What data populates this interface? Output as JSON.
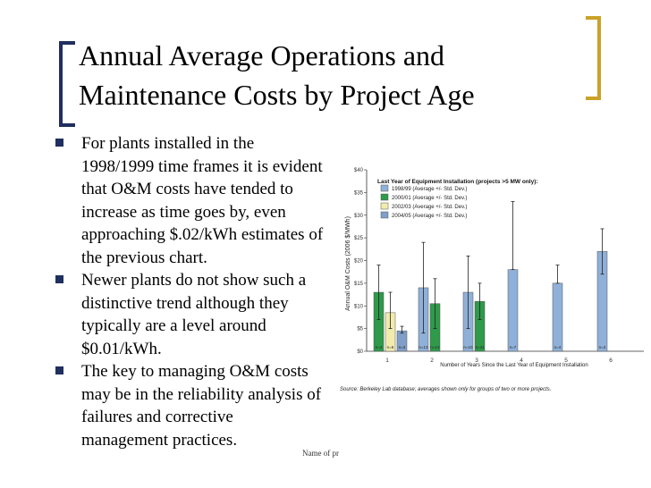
{
  "slide": {
    "title": "Annual Average Operations and Maintenance Costs by Project Age",
    "bullets": [
      "For plants installed in the 1998/1999 time frames it is evident that O&M costs have tended to increase as time goes by, even approaching $.02/kWh estimates of the previous chart.",
      "Newer plants do not show such a distinctive trend although they typically are a level around $0.01/kWh.",
      "The key to managing O&M costs may be in the reliability analysis of failures and corrective management practices."
    ],
    "footer": "Name of pr"
  },
  "colors": {
    "bracket_left": "#1f2f5f",
    "bracket_right": "#c9a227",
    "bullet": "#1f2f5f"
  },
  "chart_data": {
    "type": "bar",
    "ylabel": "Annual O&M Costs (2006 $/MWh)",
    "xlabel": "Number of Years Since the Last Year of Equipment Installation",
    "legend_title": "Last Year of Equipment Installation (projects >5 MW only):",
    "source": "Source: Berkeley Lab database; averages shown only for groups of two or more projects.",
    "ylim": [
      0,
      40
    ],
    "yticks": [
      "$0",
      "$5",
      "$10",
      "$15",
      "$20",
      "$25",
      "$30",
      "$35",
      "$40"
    ],
    "categories": [
      "1",
      "2",
      "3",
      "4",
      "5",
      "6"
    ],
    "series": [
      {
        "name": "1998/99 (Average +/- Std. Dev.)",
        "color": "#8fb0d8",
        "values": [
          null,
          14,
          13,
          18,
          15,
          22
        ],
        "err_low": [
          null,
          4,
          5,
          18,
          15,
          17
        ],
        "err_high": [
          null,
          24,
          21,
          33,
          19,
          27
        ],
        "n": [
          null,
          "n=13",
          "n=10",
          "n=7",
          "n=4",
          "n=2"
        ]
      },
      {
        "name": "2000/01 (Average +/- Std. Dev.)",
        "color": "#2e9a4a",
        "values": [
          13,
          10.5,
          11,
          null,
          null,
          null
        ],
        "err_low": [
          7,
          5,
          7,
          null,
          null,
          null
        ],
        "err_high": [
          19,
          16,
          15,
          null,
          null,
          null
        ],
        "n": [
          "n=4",
          "n=13",
          "n=11",
          null,
          null,
          null
        ]
      },
      {
        "name": "2002/03 (Average +/- Std. Dev.)",
        "color": "#f1ecae",
        "values": [
          8.5,
          null,
          null,
          null,
          null,
          null
        ],
        "err_low": [
          5,
          null,
          null,
          null,
          null,
          null
        ],
        "err_high": [
          13,
          null,
          null,
          null,
          null,
          null
        ],
        "n": [
          "n=6",
          null,
          null,
          null,
          null,
          null
        ]
      },
      {
        "name": "2004/05 (Average +/- Std. Dev.)",
        "color": "#7f9fc8",
        "values": [
          4.5,
          null,
          null,
          null,
          null,
          null
        ],
        "err_low": [
          4,
          null,
          null,
          null,
          null,
          null
        ],
        "err_high": [
          5.5,
          null,
          null,
          null,
          null,
          null
        ],
        "n": [
          "n=2",
          null,
          null,
          null,
          null,
          null
        ]
      }
    ],
    "grid": false,
    "legend_position": "top-left"
  }
}
